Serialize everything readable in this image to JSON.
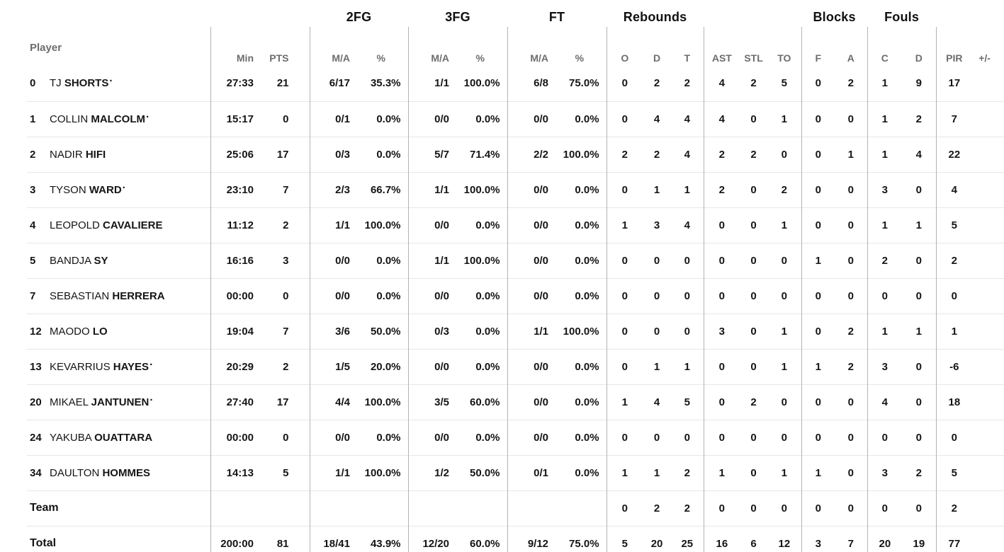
{
  "colors": {
    "text": "#151515",
    "muted_header": "#6d6d6d",
    "vertical_line": "#b3b3b3",
    "horizontal_line": "#e7e7e7",
    "background": "#ffffff"
  },
  "group_headers": {
    "fg2": "2FG",
    "fg3": "3FG",
    "ft": "FT",
    "rebounds": "Rebounds",
    "blocks": "Blocks",
    "fouls": "Fouls"
  },
  "column_headers": {
    "player": "Player",
    "min": "Min",
    "pts": "PTS",
    "ma": "M/A",
    "pct": "%",
    "o": "O",
    "d": "D",
    "t": "T",
    "ast": "AST",
    "stl": "STL",
    "to": "TO",
    "f": "F",
    "a": "A",
    "c": "C",
    "pir": "PIR",
    "plusminus": "+/-"
  },
  "starter_marker": "·",
  "players": [
    {
      "number": "0",
      "first": "TJ",
      "last": "SHORTS",
      "starter": true,
      "stats": {
        "min": "27:33",
        "pts": "21",
        "fg2_ma": "6/17",
        "fg2_pct": "35.3%",
        "fg3_ma": "1/1",
        "fg3_pct": "100.0%",
        "ft_ma": "6/8",
        "ft_pct": "75.0%",
        "reb_o": "0",
        "reb_d": "2",
        "reb_t": "2",
        "ast": "4",
        "stl": "2",
        "to": "5",
        "blk_f": "0",
        "blk_a": "2",
        "foul_c": "1",
        "foul_d": "9",
        "pir": "17",
        "pm": ""
      }
    },
    {
      "number": "1",
      "first": "COLLIN",
      "last": "MALCOLM",
      "starter": true,
      "stats": {
        "min": "15:17",
        "pts": "0",
        "fg2_ma": "0/1",
        "fg2_pct": "0.0%",
        "fg3_ma": "0/0",
        "fg3_pct": "0.0%",
        "ft_ma": "0/0",
        "ft_pct": "0.0%",
        "reb_o": "0",
        "reb_d": "4",
        "reb_t": "4",
        "ast": "4",
        "stl": "0",
        "to": "1",
        "blk_f": "0",
        "blk_a": "0",
        "foul_c": "1",
        "foul_d": "2",
        "pir": "7",
        "pm": ""
      }
    },
    {
      "number": "2",
      "first": "NADIR",
      "last": "HIFI",
      "starter": false,
      "stats": {
        "min": "25:06",
        "pts": "17",
        "fg2_ma": "0/3",
        "fg2_pct": "0.0%",
        "fg3_ma": "5/7",
        "fg3_pct": "71.4%",
        "ft_ma": "2/2",
        "ft_pct": "100.0%",
        "reb_o": "2",
        "reb_d": "2",
        "reb_t": "4",
        "ast": "2",
        "stl": "2",
        "to": "0",
        "blk_f": "0",
        "blk_a": "1",
        "foul_c": "1",
        "foul_d": "4",
        "pir": "22",
        "pm": ""
      }
    },
    {
      "number": "3",
      "first": "TYSON",
      "last": "WARD",
      "starter": true,
      "stats": {
        "min": "23:10",
        "pts": "7",
        "fg2_ma": "2/3",
        "fg2_pct": "66.7%",
        "fg3_ma": "1/1",
        "fg3_pct": "100.0%",
        "ft_ma": "0/0",
        "ft_pct": "0.0%",
        "reb_o": "0",
        "reb_d": "1",
        "reb_t": "1",
        "ast": "2",
        "stl": "0",
        "to": "2",
        "blk_f": "0",
        "blk_a": "0",
        "foul_c": "3",
        "foul_d": "0",
        "pir": "4",
        "pm": ""
      }
    },
    {
      "number": "4",
      "first": "LEOPOLD",
      "last": "CAVALIERE",
      "starter": false,
      "stats": {
        "min": "11:12",
        "pts": "2",
        "fg2_ma": "1/1",
        "fg2_pct": "100.0%",
        "fg3_ma": "0/0",
        "fg3_pct": "0.0%",
        "ft_ma": "0/0",
        "ft_pct": "0.0%",
        "reb_o": "1",
        "reb_d": "3",
        "reb_t": "4",
        "ast": "0",
        "stl": "0",
        "to": "1",
        "blk_f": "0",
        "blk_a": "0",
        "foul_c": "1",
        "foul_d": "1",
        "pir": "5",
        "pm": ""
      }
    },
    {
      "number": "5",
      "first": "BANDJA",
      "last": "SY",
      "starter": false,
      "stats": {
        "min": "16:16",
        "pts": "3",
        "fg2_ma": "0/0",
        "fg2_pct": "0.0%",
        "fg3_ma": "1/1",
        "fg3_pct": "100.0%",
        "ft_ma": "0/0",
        "ft_pct": "0.0%",
        "reb_o": "0",
        "reb_d": "0",
        "reb_t": "0",
        "ast": "0",
        "stl": "0",
        "to": "0",
        "blk_f": "1",
        "blk_a": "0",
        "foul_c": "2",
        "foul_d": "0",
        "pir": "2",
        "pm": ""
      }
    },
    {
      "number": "7",
      "first": "SEBASTIAN",
      "last": "HERRERA",
      "starter": false,
      "stats": {
        "min": "00:00",
        "pts": "0",
        "fg2_ma": "0/0",
        "fg2_pct": "0.0%",
        "fg3_ma": "0/0",
        "fg3_pct": "0.0%",
        "ft_ma": "0/0",
        "ft_pct": "0.0%",
        "reb_o": "0",
        "reb_d": "0",
        "reb_t": "0",
        "ast": "0",
        "stl": "0",
        "to": "0",
        "blk_f": "0",
        "blk_a": "0",
        "foul_c": "0",
        "foul_d": "0",
        "pir": "0",
        "pm": ""
      }
    },
    {
      "number": "12",
      "first": "MAODO",
      "last": "LO",
      "starter": false,
      "stats": {
        "min": "19:04",
        "pts": "7",
        "fg2_ma": "3/6",
        "fg2_pct": "50.0%",
        "fg3_ma": "0/3",
        "fg3_pct": "0.0%",
        "ft_ma": "1/1",
        "ft_pct": "100.0%",
        "reb_o": "0",
        "reb_d": "0",
        "reb_t": "0",
        "ast": "3",
        "stl": "0",
        "to": "1",
        "blk_f": "0",
        "blk_a": "2",
        "foul_c": "1",
        "foul_d": "1",
        "pir": "1",
        "pm": ""
      }
    },
    {
      "number": "13",
      "first": "KEVARRIUS",
      "last": "HAYES",
      "starter": true,
      "stats": {
        "min": "20:29",
        "pts": "2",
        "fg2_ma": "1/5",
        "fg2_pct": "20.0%",
        "fg3_ma": "0/0",
        "fg3_pct": "0.0%",
        "ft_ma": "0/0",
        "ft_pct": "0.0%",
        "reb_o": "0",
        "reb_d": "1",
        "reb_t": "1",
        "ast": "0",
        "stl": "0",
        "to": "1",
        "blk_f": "1",
        "blk_a": "2",
        "foul_c": "3",
        "foul_d": "0",
        "pir": "-6",
        "pm": ""
      }
    },
    {
      "number": "20",
      "first": "MIKAEL",
      "last": "JANTUNEN",
      "starter": true,
      "stats": {
        "min": "27:40",
        "pts": "17",
        "fg2_ma": "4/4",
        "fg2_pct": "100.0%",
        "fg3_ma": "3/5",
        "fg3_pct": "60.0%",
        "ft_ma": "0/0",
        "ft_pct": "0.0%",
        "reb_o": "1",
        "reb_d": "4",
        "reb_t": "5",
        "ast": "0",
        "stl": "2",
        "to": "0",
        "blk_f": "0",
        "blk_a": "0",
        "foul_c": "4",
        "foul_d": "0",
        "pir": "18",
        "pm": ""
      }
    },
    {
      "number": "24",
      "first": "YAKUBA",
      "last": "OUATTARA",
      "starter": false,
      "stats": {
        "min": "00:00",
        "pts": "0",
        "fg2_ma": "0/0",
        "fg2_pct": "0.0%",
        "fg3_ma": "0/0",
        "fg3_pct": "0.0%",
        "ft_ma": "0/0",
        "ft_pct": "0.0%",
        "reb_o": "0",
        "reb_d": "0",
        "reb_t": "0",
        "ast": "0",
        "stl": "0",
        "to": "0",
        "blk_f": "0",
        "blk_a": "0",
        "foul_c": "0",
        "foul_d": "0",
        "pir": "0",
        "pm": ""
      }
    },
    {
      "number": "34",
      "first": "DAULTON",
      "last": "HOMMES",
      "starter": false,
      "stats": {
        "min": "14:13",
        "pts": "5",
        "fg2_ma": "1/1",
        "fg2_pct": "100.0%",
        "fg3_ma": "1/2",
        "fg3_pct": "50.0%",
        "ft_ma": "0/1",
        "ft_pct": "0.0%",
        "reb_o": "1",
        "reb_d": "1",
        "reb_t": "2",
        "ast": "1",
        "stl": "0",
        "to": "1",
        "blk_f": "1",
        "blk_a": "0",
        "foul_c": "3",
        "foul_d": "2",
        "pir": "5",
        "pm": ""
      }
    }
  ],
  "team_row": {
    "label": "Team",
    "stats": {
      "min": "",
      "pts": "",
      "fg2_ma": "",
      "fg2_pct": "",
      "fg3_ma": "",
      "fg3_pct": "",
      "ft_ma": "",
      "ft_pct": "",
      "reb_o": "0",
      "reb_d": "2",
      "reb_t": "2",
      "ast": "0",
      "stl": "0",
      "to": "0",
      "blk_f": "0",
      "blk_a": "0",
      "foul_c": "0",
      "foul_d": "0",
      "pir": "2",
      "pm": ""
    }
  },
  "total_row": {
    "label": "Total",
    "stats": {
      "min": "200:00",
      "pts": "81",
      "fg2_ma": "18/41",
      "fg2_pct": "43.9%",
      "fg3_ma": "12/20",
      "fg3_pct": "60.0%",
      "ft_ma": "9/12",
      "ft_pct": "75.0%",
      "reb_o": "5",
      "reb_d": "20",
      "reb_t": "25",
      "ast": "16",
      "stl": "6",
      "to": "12",
      "blk_f": "3",
      "blk_a": "7",
      "foul_c": "20",
      "foul_d": "19",
      "pir": "77",
      "pm": ""
    }
  }
}
